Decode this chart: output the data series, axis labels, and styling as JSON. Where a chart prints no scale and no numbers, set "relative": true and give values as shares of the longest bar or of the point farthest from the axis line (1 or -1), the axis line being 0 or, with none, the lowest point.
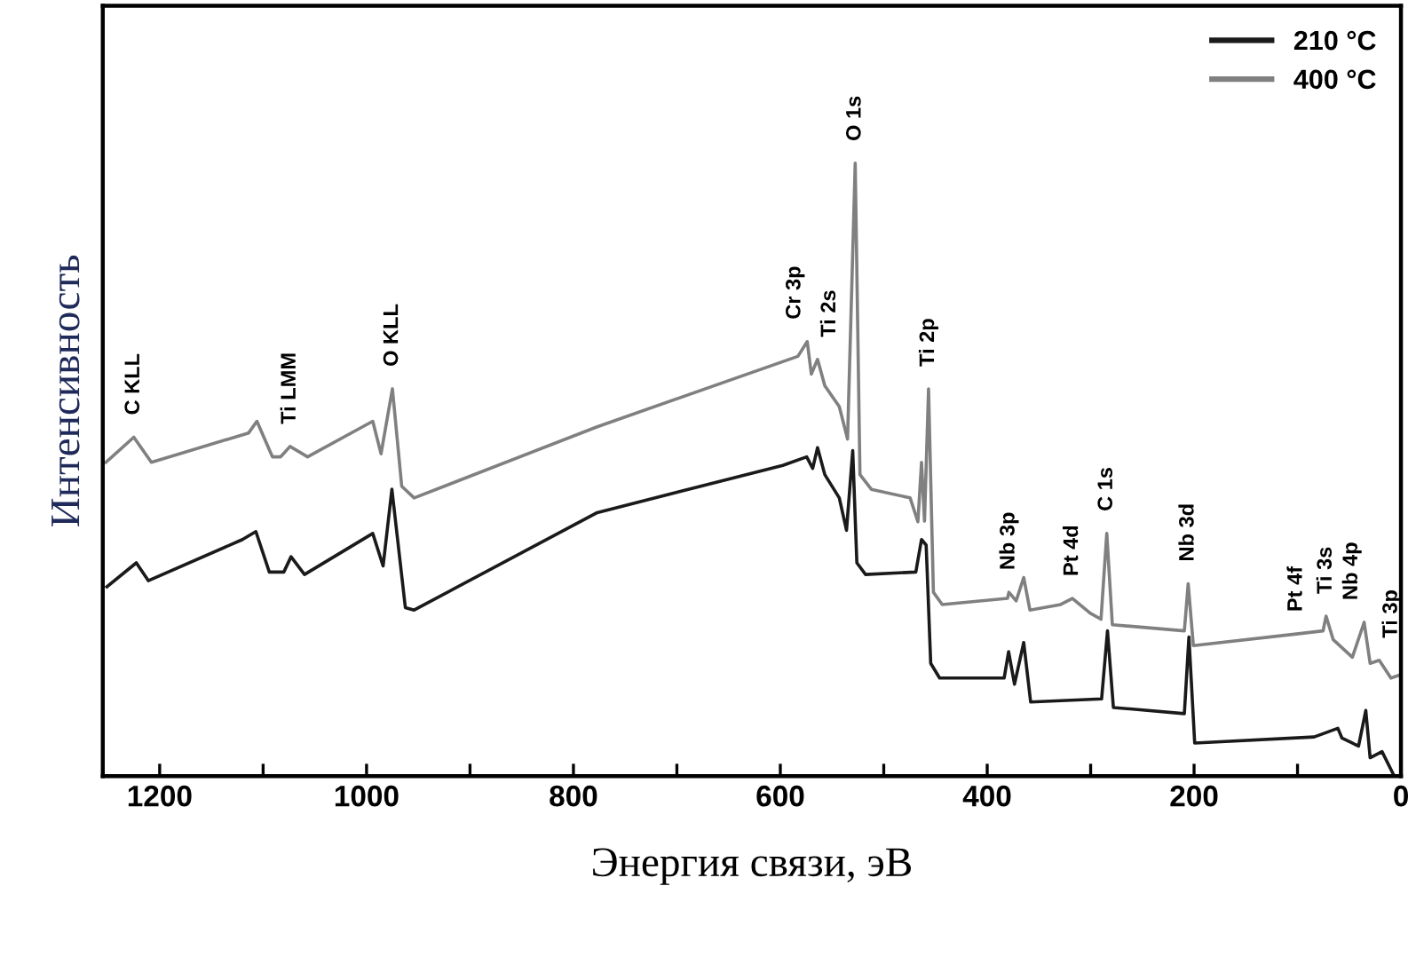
{
  "chart_data": {
    "type": "line",
    "relative": true,
    "xlabel": "Энергия связи, эВ",
    "ylabel": "Интенсивность",
    "xlim": [
      1255,
      0
    ],
    "xticks": [
      1200,
      {
        "value": 1100,
        "label": null
      },
      1000,
      {
        "value": 900,
        "label": null
      },
      800,
      {
        "value": 700,
        "label": null
      },
      600,
      {
        "value": 500,
        "label": null
      },
      400,
      {
        "value": 300,
        "label": null
      },
      200,
      {
        "value": 100,
        "label": null
      },
      0
    ],
    "legend": "top right",
    "grid": false,
    "marker": "none",
    "line_style": "solid",
    "series": [
      {
        "name": "210 °C",
        "color": "#1a1a1a",
        "x": [
          1251,
          1222.6,
          1211,
          1120,
          1107,
          1094,
          1080,
          1073,
          1060,
          994,
          984,
          975.5,
          962.5,
          954,
          777,
          597.6,
          574.5,
          568.7,
          564,
          557,
          543,
          536,
          530,
          526,
          517.6,
          469,
          463.5,
          459,
          454.6,
          446,
          383.6,
          379.3,
          373.6,
          364.7,
          358,
          289.4,
          283.7,
          278,
          209.4,
          205,
          199.4,
          83.9,
          61,
          57,
          41,
          34,
          29.8,
          18.3,
          6.8,
          1
        ],
        "values": [
          0.309,
          0.348,
          0.319,
          0.386,
          0.399,
          0.333,
          0.333,
          0.358,
          0.329,
          0.396,
          0.343,
          0.468,
          0.275,
          0.271,
          0.43,
          0.507,
          0.521,
          0.502,
          0.536,
          0.492,
          0.454,
          0.401,
          0.531,
          0.348,
          0.329,
          0.333,
          0.386,
          0.377,
          0.184,
          0.16,
          0.16,
          0.203,
          0.15,
          0.218,
          0.121,
          0.126,
          0.237,
          0.112,
          0.102,
          0.227,
          0.054,
          0.064,
          0.078,
          0.062,
          0.049,
          0.107,
          0.03,
          0.04,
          0.001,
          0.0
        ]
      },
      {
        "name": "400 °C",
        "color": "#808080",
        "x": [
          1252,
          1225,
          1208,
          1114,
          1106,
          1091,
          1083,
          1074,
          1057,
          994,
          986,
          975,
          966,
          954,
          777,
          583,
          574,
          570,
          564,
          557,
          543,
          535,
          527.6,
          523,
          512,
          474.5,
          467,
          463.5,
          460.6,
          456.7,
          452,
          443.5,
          380.4,
          379,
          372,
          364.7,
          358.7,
          329,
          317.6,
          300.5,
          290,
          284.4,
          279,
          209.4,
          205.7,
          200.7,
          101,
          75.3,
          72.4,
          65.6,
          47,
          35.6,
          29.8,
          21,
          9.7,
          1
        ],
        "values": [
          0.512,
          0.553,
          0.512,
          0.56,
          0.579,
          0.521,
          0.521,
          0.538,
          0.521,
          0.579,
          0.526,
          0.632,
          0.473,
          0.454,
          0.57,
          0.685,
          0.709,
          0.656,
          0.68,
          0.637,
          0.603,
          0.55,
          1.0,
          0.492,
          0.468,
          0.454,
          0.415,
          0.512,
          0.416,
          0.632,
          0.3,
          0.28,
          0.29,
          0.3,
          0.286,
          0.324,
          0.271,
          0.28,
          0.29,
          0.266,
          0.256,
          0.396,
          0.247,
          0.237,
          0.314,
          0.213,
          0.232,
          0.237,
          0.261,
          0.223,
          0.194,
          0.251,
          0.184,
          0.189,
          0.16,
          0.165
        ]
      }
    ],
    "annotations": [
      {
        "text": "C KLL",
        "x": 1225,
        "y": 0.553
      },
      {
        "text": "Ti LMM",
        "x": 1074,
        "y": 0.538
      },
      {
        "text": "O KLL",
        "x": 975,
        "y": 0.632
      },
      {
        "text": "Cr 3p",
        "x": 574,
        "y": 0.709
      },
      {
        "text": "Ti 2s",
        "x": 564,
        "y": 0.68
      },
      {
        "text": "O 1s",
        "x": 527.6,
        "y": 1.0
      },
      {
        "text": "Ti 2p",
        "x": 456.7,
        "y": 0.632
      },
      {
        "text": "Nb 3p",
        "x": 379,
        "y": 0.3
      },
      {
        "text": "Pt 4d",
        "x": 317.6,
        "y": 0.29
      },
      {
        "text": "C 1s",
        "x": 284.4,
        "y": 0.396
      },
      {
        "text": "Nb 3d",
        "x": 205.7,
        "y": 0.314
      },
      {
        "text": "Pt 4f",
        "x": 101,
        "y": 0.232
      },
      {
        "text": "Ti 3s",
        "x": 72.4,
        "y": 0.261
      },
      {
        "text": "Nb 4p",
        "x": 35.6,
        "y": 0.251
      },
      {
        "text": "Ti 3p",
        "x": 21,
        "y": 0.189
      }
    ]
  }
}
